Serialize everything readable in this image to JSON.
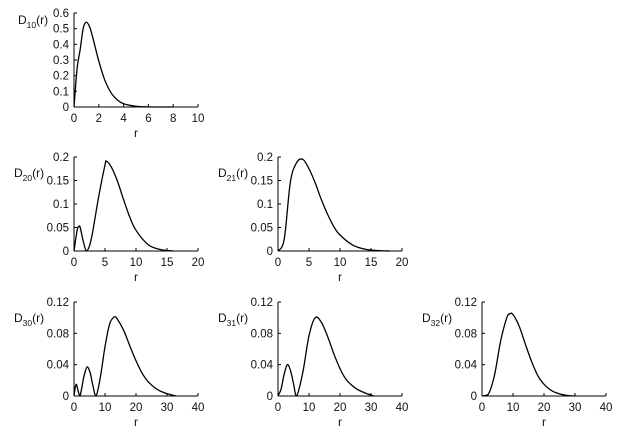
{
  "chart_data": [
    {
      "id": "D10",
      "type": "line",
      "ylabel_main": "D",
      "ylabel_sub": "10",
      "ylabel_tail": "(r)",
      "xlabel": "r",
      "xlim": [
        0,
        10
      ],
      "ylim": [
        0,
        0.6
      ],
      "xticks": [
        0,
        2,
        4,
        6,
        8,
        10
      ],
      "yticks": [
        0,
        0.1,
        0.2,
        0.3,
        0.4,
        0.5,
        0.6
      ],
      "ytick_labels": [
        "0",
        "0.1",
        "0.2",
        "0.3",
        "0.4",
        "0.5",
        "0.6"
      ],
      "n": 1,
      "l": 0,
      "x": [
        0,
        0.25,
        0.5,
        0.75,
        1,
        1.25,
        1.5,
        2,
        2.5,
        3,
        3.5,
        4,
        5,
        6,
        7,
        8
      ],
      "y": [
        0,
        0.246,
        0.368,
        0.505,
        0.541,
        0.513,
        0.448,
        0.293,
        0.168,
        0.089,
        0.045,
        0.021,
        0.005,
        0.001,
        0,
        0
      ]
    },
    {
      "id": "D20",
      "type": "line",
      "ylabel_main": "D",
      "ylabel_sub": "20",
      "ylabel_tail": "(r)",
      "xlabel": "r",
      "xlim": [
        0,
        20
      ],
      "ylim": [
        0,
        0.2
      ],
      "xticks": [
        0,
        5,
        10,
        15,
        20
      ],
      "yticks": [
        0,
        0.05,
        0.1,
        0.15,
        0.2
      ],
      "ytick_labels": [
        "0",
        "0.05",
        "0.1",
        "0.15",
        "0.2"
      ],
      "n": 2,
      "l": 0,
      "x": [
        0,
        0.5,
        0.76,
        1,
        1.5,
        2,
        2.5,
        3,
        4,
        5,
        5.24,
        6,
        7,
        8,
        9,
        10,
        12,
        14,
        16
      ],
      "y": [
        0,
        0.044,
        0.052,
        0.05,
        0.02,
        0,
        0.011,
        0.04,
        0.117,
        0.183,
        0.191,
        0.179,
        0.149,
        0.109,
        0.072,
        0.044,
        0.013,
        0.003,
        0
      ]
    },
    {
      "id": "D21",
      "type": "line",
      "ylabel_main": "D",
      "ylabel_sub": "21",
      "ylabel_tail": "(r)",
      "xlabel": "r",
      "xlim": [
        0,
        20
      ],
      "ylim": [
        0,
        0.2
      ],
      "xticks": [
        0,
        5,
        10,
        15,
        20
      ],
      "yticks": [
        0,
        0.05,
        0.1,
        0.15,
        0.2
      ],
      "ytick_labels": [
        "0",
        "0.05",
        "0.1",
        "0.15",
        "0.2"
      ],
      "n": 2,
      "l": 1,
      "x": [
        0,
        1,
        2,
        3,
        4,
        5,
        6,
        7,
        8,
        9,
        10,
        12,
        14,
        16,
        18
      ],
      "y": [
        0,
        0.025,
        0.147,
        0.188,
        0.195,
        0.175,
        0.145,
        0.109,
        0.078,
        0.052,
        0.034,
        0.013,
        0.004,
        0.001,
        0
      ]
    },
    {
      "id": "D30",
      "type": "line",
      "ylabel_main": "D",
      "ylabel_sub": "30",
      "ylabel_tail": "(r)",
      "xlabel": "r",
      "xlim": [
        0,
        40
      ],
      "ylim": [
        0,
        0.12
      ],
      "xticks": [
        0,
        10,
        20,
        30,
        40
      ],
      "yticks": [
        0,
        0.04,
        0.08,
        0.12
      ],
      "ytick_labels": [
        "0",
        "0.04",
        "0.08",
        "0.12"
      ],
      "n": 3,
      "l": 0,
      "x": [
        0,
        0.4,
        0.74,
        1,
        1.5,
        1.9,
        2.5,
        3.2,
        4.2,
        5.2,
        6,
        7.1,
        8.5,
        10,
        11.5,
        13,
        14,
        16,
        18,
        20,
        22,
        24,
        27,
        30,
        33
      ],
      "y": [
        0,
        0.011,
        0.015,
        0.012,
        0.004,
        0,
        0.01,
        0.025,
        0.037,
        0.03,
        0.015,
        0,
        0.024,
        0.063,
        0.092,
        0.101,
        0.098,
        0.084,
        0.064,
        0.045,
        0.029,
        0.018,
        0.008,
        0.003,
        0
      ]
    },
    {
      "id": "D31",
      "type": "line",
      "ylabel_main": "D",
      "ylabel_sub": "31",
      "ylabel_tail": "(r)",
      "xlabel": "r",
      "xlim": [
        0,
        40
      ],
      "ylim": [
        0,
        0.12
      ],
      "xticks": [
        0,
        10,
        20,
        30,
        40
      ],
      "yticks": [
        0,
        0.04,
        0.08,
        0.12
      ],
      "ytick_labels": [
        "0",
        "0.04",
        "0.08",
        "0.12"
      ],
      "n": 3,
      "l": 1,
      "x": [
        0,
        1,
        2,
        3,
        4,
        5,
        6,
        8,
        10,
        12,
        14,
        16,
        18,
        20,
        22,
        25,
        28,
        31
      ],
      "y": [
        0,
        0.009,
        0.028,
        0.04,
        0.033,
        0.016,
        0,
        0.03,
        0.077,
        0.1,
        0.094,
        0.076,
        0.054,
        0.035,
        0.021,
        0.01,
        0.004,
        0
      ]
    },
    {
      "id": "D32",
      "type": "line",
      "ylabel_main": "D",
      "ylabel_sub": "32",
      "ylabel_tail": "(r)",
      "xlabel": "r",
      "xlim": [
        0,
        40
      ],
      "ylim": [
        0,
        0.12
      ],
      "xticks": [
        0,
        10,
        20,
        30,
        40
      ],
      "yticks": [
        0,
        0.04,
        0.08,
        0.12
      ],
      "ytick_labels": [
        "0",
        "0.04",
        "0.08",
        "0.12"
      ],
      "n": 3,
      "l": 2,
      "x": [
        0,
        2,
        4,
        6,
        8,
        9,
        10,
        12,
        14,
        16,
        18,
        20,
        22,
        24,
        27,
        30
      ],
      "y": [
        0,
        0.002,
        0.026,
        0.07,
        0.1,
        0.105,
        0.104,
        0.089,
        0.066,
        0.044,
        0.026,
        0.015,
        0.008,
        0.004,
        0.001,
        0
      ]
    }
  ]
}
